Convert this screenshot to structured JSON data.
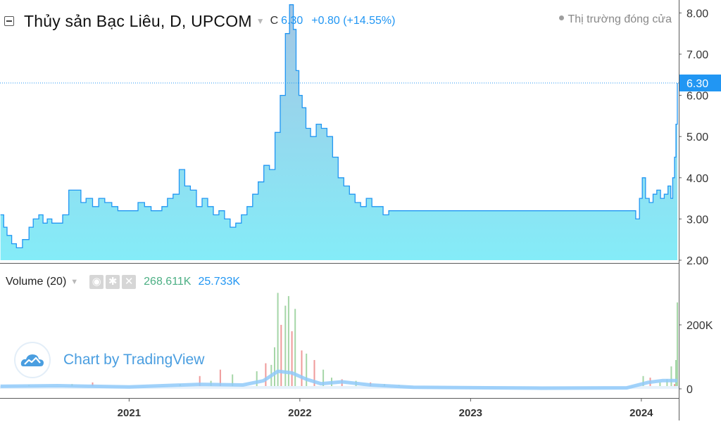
{
  "header": {
    "title": "Thủy sản Bạc Liêu, D, UPCOM",
    "ohlc_label": "C",
    "close": "6.30",
    "change": "+0.80 (+14.55%)",
    "market_status": "Thị trường đóng cửa",
    "collapse_icon": "minus-square-icon",
    "caret_icon": "chevron-down-icon"
  },
  "volume_legend": {
    "title": "Volume (20)",
    "value1": "268.611K",
    "value2": "25.733K",
    "icons": [
      "eye-icon",
      "gear-icon",
      "close-icon"
    ]
  },
  "watermark": {
    "text": "Chart by TradingView",
    "icon": "tradingview-cloud-icon"
  },
  "colors": {
    "line": "#2196f3",
    "area_top": "#a4c6e4",
    "area_bottom": "#84ecf8",
    "volume_up": "#a5d6a7",
    "volume_down": "#ef9a9a",
    "volume_ma": "#90caf9",
    "price_badge": "#2196f3",
    "axis_text": "#333333"
  },
  "chart_data": [
    {
      "type": "area",
      "title": "Thủy sản Bạc Liêu, D, UPCOM",
      "y_ticks": [
        "8.00",
        "7.00",
        "6.00",
        "5.00",
        "4.00",
        "3.00",
        "2.00"
      ],
      "ylim": [
        2.0,
        8.2
      ],
      "x_ticks": [
        "2021",
        "2022",
        "2023",
        "2024"
      ],
      "last_price_label": "6.30",
      "last_price": 6.3,
      "series": [
        {
          "x": [
            "2020-04-01",
            "2020-04-08",
            "2020-04-15",
            "2020-04-25",
            "2020-05-05",
            "2020-05-18",
            "2020-06-01",
            "2020-06-10",
            "2020-06-22",
            "2020-07-01",
            "2020-07-10",
            "2020-07-20",
            "2020-08-01",
            "2020-08-12",
            "2020-08-25",
            "2020-09-08",
            "2020-09-20",
            "2020-10-01",
            "2020-10-15",
            "2020-10-28",
            "2020-11-10",
            "2020-11-25",
            "2020-12-08",
            "2020-12-22",
            "2021-01-06",
            "2021-01-20",
            "2021-02-03",
            "2021-02-17",
            "2021-03-01",
            "2021-03-12",
            "2021-03-24",
            "2021-04-05",
            "2021-04-18",
            "2021-04-30",
            "2021-05-12",
            "2021-05-25",
            "2021-06-06",
            "2021-06-18",
            "2021-06-30",
            "2021-07-12",
            "2021-07-24",
            "2021-08-05",
            "2021-08-17",
            "2021-08-29",
            "2021-09-10",
            "2021-09-22",
            "2021-10-04",
            "2021-10-16",
            "2021-10-28",
            "2021-11-09",
            "2021-11-20",
            "2021-12-01",
            "2021-12-10",
            "2021-12-18",
            "2021-12-24",
            "2021-12-30",
            "2022-01-06",
            "2022-01-14",
            "2022-01-24",
            "2022-02-05",
            "2022-02-16",
            "2022-02-28",
            "2022-03-12",
            "2022-03-24",
            "2022-04-05",
            "2022-04-17",
            "2022-04-29",
            "2022-05-11",
            "2022-05-23",
            "2022-06-04",
            "2022-06-16",
            "2022-06-28",
            "2022-07-10",
            "2022-07-22",
            "2022-08-03",
            "2022-08-15",
            "2022-08-27",
            "2022-09-08",
            "2022-10-10",
            "2022-12-01",
            "2023-02-01",
            "2023-04-01",
            "2023-06-01",
            "2023-08-01",
            "2023-10-01",
            "2023-12-01",
            "2023-12-20",
            "2023-12-28",
            "2024-01-03",
            "2024-01-10",
            "2024-01-18",
            "2024-01-26",
            "2024-02-03",
            "2024-02-11",
            "2024-02-19",
            "2024-02-27",
            "2024-03-04",
            "2024-03-08",
            "2024-03-12",
            "2024-03-15",
            "2024-03-18"
          ],
          "values": [
            3.1,
            2.8,
            2.6,
            2.4,
            2.3,
            2.5,
            2.8,
            3.0,
            3.1,
            2.9,
            3.0,
            2.9,
            2.9,
            3.1,
            3.7,
            3.7,
            3.4,
            3.5,
            3.3,
            3.5,
            3.4,
            3.3,
            3.2,
            3.2,
            3.2,
            3.4,
            3.3,
            3.2,
            3.2,
            3.3,
            3.5,
            3.6,
            4.2,
            3.8,
            3.7,
            3.3,
            3.5,
            3.3,
            3.1,
            3.2,
            3.0,
            2.8,
            2.9,
            3.1,
            3.3,
            3.6,
            3.9,
            4.3,
            4.2,
            5.1,
            6.0,
            7.5,
            8.2,
            7.6,
            6.6,
            6.0,
            5.7,
            5.2,
            5.0,
            5.3,
            5.2,
            5.0,
            4.5,
            4.0,
            3.8,
            3.6,
            3.4,
            3.3,
            3.5,
            3.3,
            3.3,
            3.1,
            3.2,
            3.2,
            3.2,
            3.2,
            3.2,
            3.2,
            3.2,
            3.2,
            3.2,
            3.2,
            3.2,
            3.2,
            3.2,
            3.2,
            3.0,
            3.5,
            4.0,
            3.5,
            3.4,
            3.6,
            3.7,
            3.5,
            3.6,
            3.8,
            3.5,
            4.0,
            4.5,
            5.3,
            6.3
          ]
        }
      ]
    },
    {
      "type": "bar",
      "title": "Volume (20)",
      "y_ticks": [
        "200K",
        "0"
      ],
      "ylim": [
        0,
        330000
      ],
      "x_ticks": [
        "2021",
        "2022",
        "2023",
        "2024"
      ],
      "series": [
        {
          "name": "Volume",
          "x": [
            "2020-06-01",
            "2020-09-01",
            "2020-10-15",
            "2021-02-01",
            "2021-04-20",
            "2021-06-01",
            "2021-06-25",
            "2021-07-15",
            "2021-08-10",
            "2021-10-01",
            "2021-10-20",
            "2021-11-01",
            "2021-11-08",
            "2021-11-15",
            "2021-11-22",
            "2021-12-01",
            "2021-12-08",
            "2021-12-15",
            "2021-12-22",
            "2022-01-05",
            "2022-01-15",
            "2022-02-01",
            "2022-02-20",
            "2022-03-10",
            "2022-04-01",
            "2022-05-01",
            "2022-06-01",
            "2022-07-01",
            "2022-08-01",
            "2023-11-20",
            "2024-01-05",
            "2024-01-20",
            "2024-02-10",
            "2024-02-25",
            "2024-03-05",
            "2024-03-12",
            "2024-03-15",
            "2024-03-18"
          ],
          "values": [
            12000,
            15000,
            20000,
            8000,
            15000,
            40000,
            25000,
            60000,
            45000,
            55000,
            80000,
            75000,
            130000,
            300000,
            200000,
            260000,
            290000,
            180000,
            250000,
            120000,
            110000,
            90000,
            60000,
            35000,
            30000,
            25000,
            20000,
            15000,
            12000,
            8000,
            40000,
            35000,
            20000,
            30000,
            70000,
            15000,
            90000,
            270000
          ],
          "direction": [
            "up",
            "up",
            "down",
            "up",
            "up",
            "down",
            "up",
            "down",
            "up",
            "up",
            "down",
            "up",
            "up",
            "up",
            "down",
            "up",
            "up",
            "down",
            "up",
            "down",
            "up",
            "down",
            "up",
            "up",
            "down",
            "up",
            "down",
            "up",
            "up",
            "up",
            "up",
            "down",
            "up",
            "up",
            "up",
            "down",
            "up",
            "up"
          ]
        },
        {
          "name": "Volume MA (20)",
          "x": [
            "2020-04-01",
            "2020-08-01",
            "2021-01-01",
            "2021-06-01",
            "2021-09-01",
            "2021-10-15",
            "2021-11-15",
            "2021-12-15",
            "2022-01-15",
            "2022-02-15",
            "2022-04-01",
            "2022-06-01",
            "2022-09-01",
            "2023-06-01",
            "2023-12-01",
            "2024-01-15",
            "2024-02-15",
            "2024-03-18"
          ],
          "values": [
            8000,
            10000,
            6000,
            14000,
            12000,
            25000,
            55000,
            50000,
            30000,
            16000,
            22000,
            12000,
            5000,
            2000,
            3000,
            20000,
            25733,
            25733
          ]
        }
      ]
    }
  ]
}
